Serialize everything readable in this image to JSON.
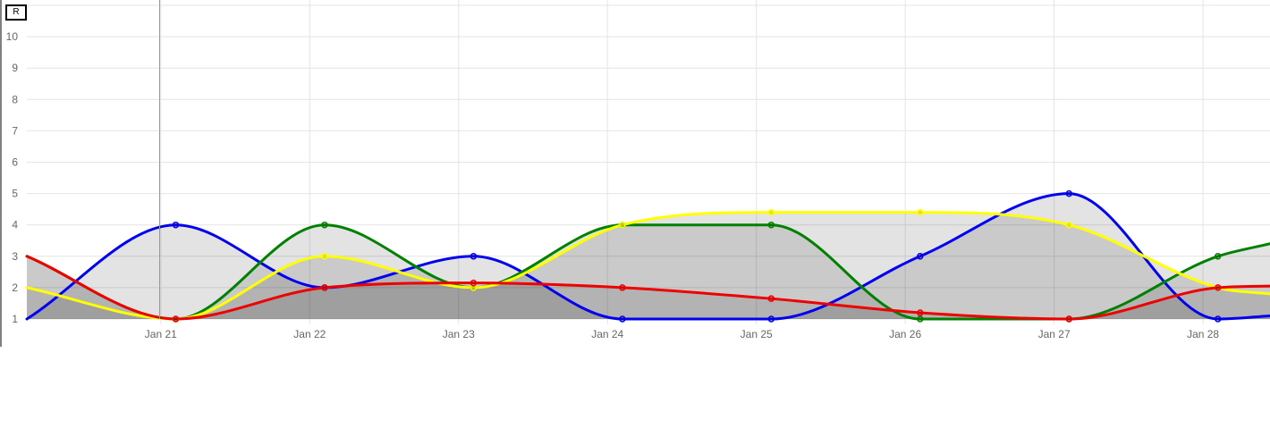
{
  "toolbar": {
    "reset_label": "R"
  },
  "chart_data": {
    "type": "line",
    "title": "",
    "xlabel": "",
    "ylabel": "",
    "x_tick_labels": [
      "Jan 21",
      "Jan 22",
      "Jan 23",
      "Jan 24",
      "Jan 25",
      "Jan 26",
      "Jan 27",
      "Jan 28"
    ],
    "x_range": [
      "Jan 20.1",
      "Jan 28.45"
    ],
    "x_days": [
      20.1,
      21.1,
      22.1,
      23.1,
      24.1,
      25.1,
      26.1,
      27.1,
      28.1,
      28.45
    ],
    "ylim": [
      1,
      11
    ],
    "y_ticks": [
      1,
      2,
      3,
      4,
      5,
      6,
      7,
      8,
      9,
      10
    ],
    "grid": true,
    "fill": true,
    "smooth": true,
    "series": [
      {
        "color": "#0000ee",
        "values": [
          1,
          4,
          2,
          3,
          1,
          1,
          3,
          5,
          1,
          1.1
        ]
      },
      {
        "color": "#008000",
        "values": [
          3,
          1,
          4,
          2,
          4,
          4,
          1,
          1,
          3,
          3.4
        ]
      },
      {
        "color": "#ffff00",
        "values": [
          2,
          1,
          3,
          2,
          4,
          4.4,
          4.4,
          4,
          2,
          1.8
        ]
      },
      {
        "color": "#ee0000",
        "values": [
          3,
          1,
          2,
          2.15,
          2,
          1.65,
          1.2,
          1,
          2,
          2.05
        ]
      }
    ]
  }
}
